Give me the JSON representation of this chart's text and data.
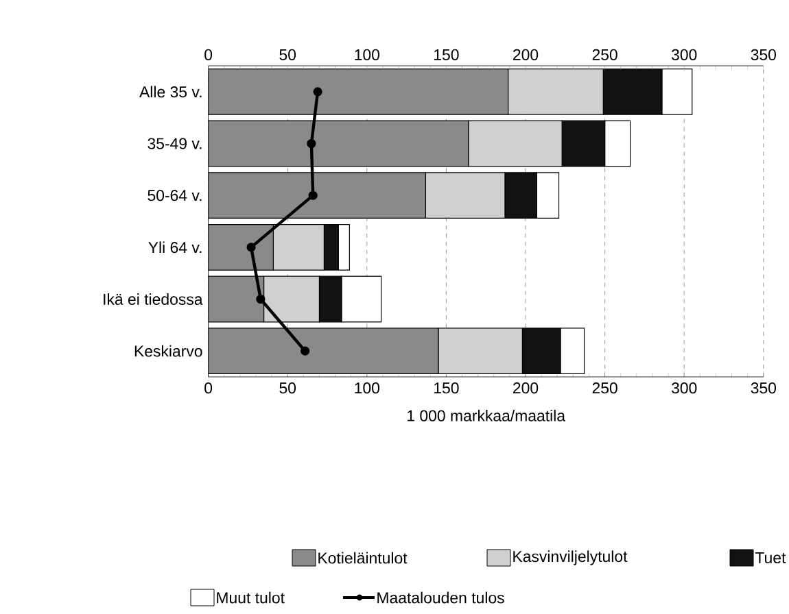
{
  "chart_data": {
    "type": "bar",
    "orientation": "horizontal",
    "stacked": true,
    "xlabel": "1 000 markkaa/maatila",
    "categories": [
      "Alle 35 v.",
      "35-49 v.",
      "50-64 v.",
      "Yli 64 v.",
      "Ikä ei tiedossa",
      "Keskiarvo"
    ],
    "series": [
      {
        "name": "Kotieläintulot",
        "color": "#8a8a8a",
        "values": [
          189,
          164,
          137,
          41,
          35,
          145
        ]
      },
      {
        "name": "Kasvinviljelytulot",
        "color": "#d0d0d0",
        "values": [
          60,
          59,
          50,
          32,
          35,
          53
        ]
      },
      {
        "name": "Tuet",
        "color": "#111111",
        "values": [
          37,
          27,
          20,
          9,
          14,
          24
        ]
      },
      {
        "name": "Muut tulot",
        "color": "#ffffff",
        "values": [
          19,
          16,
          14,
          7,
          25,
          15
        ]
      },
      {
        "name": "Maatalouden tulos",
        "type": "line",
        "color": "#000000",
        "marker": "circle",
        "line_style": "solid",
        "values": [
          69,
          65,
          66,
          27,
          33,
          61
        ]
      }
    ],
    "xlim": [
      0,
      350
    ],
    "xticks": [
      0,
      50,
      100,
      150,
      200,
      250,
      300,
      350
    ],
    "x2lim": [
      0,
      350
    ],
    "x2ticks": [
      0,
      50,
      100,
      150,
      200,
      250,
      300,
      350
    ],
    "grid": "x",
    "legend": "bottom"
  }
}
